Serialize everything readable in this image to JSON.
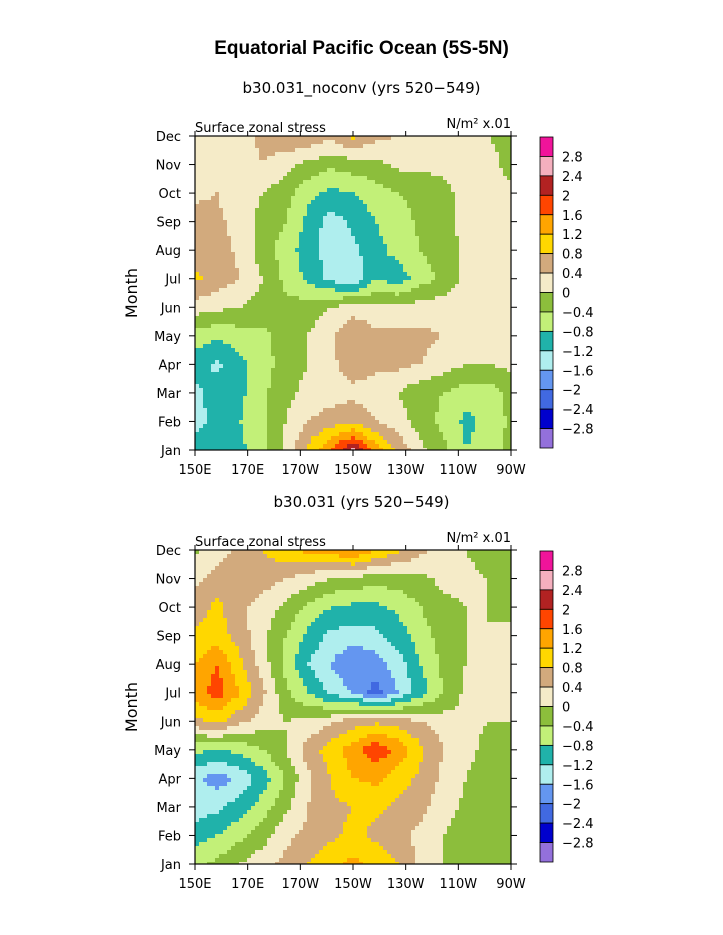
{
  "title": "Equatorial Pacific Ocean (5S-5N)",
  "colorbar": {
    "labels": [
      "2.8",
      "2.4",
      "2",
      "1.6",
      "1.2",
      "0.8",
      "0.4",
      "0",
      "−0.4",
      "−0.8",
      "−1.2",
      "−1.6",
      "−2",
      "−2.4",
      "−2.8"
    ],
    "colors": [
      "#f0149a",
      "#f5afbe",
      "#b22222",
      "#ff4500",
      "#ffa500",
      "#ffd700",
      "#d2aa7d",
      "#f5ebc8",
      "#8cbe3c",
      "#c2f078",
      "#20b2aa",
      "#afeeee",
      "#6496f0",
      "#4169e1",
      "#0000cd",
      "#9370db"
    ]
  },
  "chart_data": [
    {
      "type": "heatmap",
      "title": "b30.031_noconv (yrs 520−549)",
      "subtitle_left": "Surface zonal stress",
      "subtitle_right": "N/m² x.01",
      "ylabel": "Month",
      "xlabel": "",
      "x_ticks": [
        "150E",
        "170E",
        "170W",
        "150W",
        "130W",
        "110W",
        "90W"
      ],
      "y_ticks": [
        "Jan",
        "Feb",
        "Mar",
        "Apr",
        "May",
        "Jun",
        "Jul",
        "Aug",
        "Sep",
        "Oct",
        "Nov",
        "Dec"
      ],
      "xlim": [
        "150E",
        "90W"
      ],
      "levels": [
        -2.8,
        -2.4,
        -2.0,
        -1.6,
        -1.2,
        -0.8,
        -0.4,
        0,
        0.4,
        0.8,
        1.2,
        1.6,
        2.0,
        2.4,
        2.8
      ],
      "values": [
        [
          -0.9,
          -1.1,
          -0.9,
          -0.5,
          0.1,
          0.9,
          1.6,
          2.4,
          1.4,
          0.7,
          0.1,
          -0.3,
          -0.8,
          -0.6,
          -0.3
        ],
        [
          -1.4,
          -1.0,
          -0.8,
          -0.5,
          0.0,
          0.4,
          0.6,
          0.7,
          0.4,
          0.2,
          -0.2,
          -0.5,
          -0.9,
          -0.7,
          -0.3
        ],
        [
          -1.3,
          -1.0,
          -0.9,
          -0.5,
          -0.1,
          0.1,
          0.2,
          0.3,
          0.2,
          0.0,
          -0.3,
          -0.4,
          -0.6,
          -0.6,
          -0.3
        ],
        [
          -1.0,
          -1.3,
          -0.9,
          -0.6,
          -0.2,
          0.0,
          0.3,
          0.6,
          0.5,
          0.5,
          0.4,
          0.2,
          0.0,
          0.0,
          0.1
        ],
        [
          -0.6,
          -0.7,
          -0.6,
          -0.5,
          -0.2,
          0.0,
          0.3,
          0.8,
          0.5,
          0.5,
          0.5,
          0.4,
          0.2,
          0.1,
          0.1
        ],
        [
          0.2,
          0.1,
          0.0,
          -0.2,
          -0.3,
          -0.2,
          0.0,
          0.2,
          0.1,
          0.1,
          0.2,
          0.2,
          0.2,
          0.1,
          0.1
        ],
        [
          0.9,
          0.6,
          0.4,
          0.0,
          -0.5,
          -0.9,
          -1.3,
          -1.6,
          -0.8,
          -1.0,
          -0.6,
          -0.3,
          0.1,
          0.1,
          0.1
        ],
        [
          0.6,
          0.6,
          0.3,
          -0.2,
          -0.6,
          -1.0,
          -1.4,
          -1.3,
          -0.9,
          -0.7,
          -0.4,
          -0.2,
          0.1,
          0.1,
          0.1
        ],
        [
          0.6,
          0.5,
          0.2,
          -0.1,
          -0.4,
          -0.9,
          -1.4,
          -1.1,
          -0.8,
          -0.6,
          -0.3,
          -0.1,
          0.1,
          0.1,
          0.2
        ],
        [
          0.3,
          0.4,
          0.1,
          0.0,
          -0.2,
          -0.7,
          -0.9,
          -0.8,
          -0.6,
          -0.4,
          -0.3,
          -0.1,
          0.1,
          0.0,
          0.1
        ],
        [
          0.3,
          0.1,
          0.3,
          0.4,
          0.1,
          -0.1,
          -0.3,
          -0.2,
          -0.1,
          0.1,
          0.1,
          0.1,
          0.2,
          0.1,
          -0.1
        ],
        [
          0.2,
          0.1,
          0.2,
          0.5,
          0.8,
          0.7,
          0.5,
          0.9,
          0.5,
          0.4,
          0.3,
          0.2,
          0.1,
          0.0,
          -0.1
        ]
      ]
    },
    {
      "type": "heatmap",
      "title": "b30.031 (yrs 520−549)",
      "subtitle_left": "Surface zonal stress",
      "subtitle_right": "N/m² x.01",
      "ylabel": "Month",
      "xlabel": "",
      "x_ticks": [
        "150E",
        "170E",
        "170W",
        "150W",
        "130W",
        "110W",
        "90W"
      ],
      "y_ticks": [
        "Jan",
        "Feb",
        "Mar",
        "Apr",
        "May",
        "Jun",
        "Jul",
        "Aug",
        "Sep",
        "Oct",
        "Nov",
        "Dec"
      ],
      "xlim": [
        "150E",
        "90W"
      ],
      "levels": [
        -2.8,
        -2.4,
        -2.0,
        -1.6,
        -1.2,
        -0.8,
        -0.4,
        0,
        0.4,
        0.8,
        1.2,
        1.6,
        2.0,
        2.4,
        2.8
      ],
      "values": [
        [
          -0.5,
          -0.3,
          0.0,
          0.3,
          0.5,
          0.8,
          1.1,
          1.3,
          1.1,
          0.8,
          0.3,
          0.0,
          -0.3,
          -0.4,
          -0.3
        ],
        [
          -1.0,
          -0.8,
          -0.5,
          -0.2,
          0.3,
          0.5,
          0.7,
          0.9,
          0.7,
          0.5,
          0.3,
          0.0,
          -0.3,
          -0.4,
          -0.3
        ],
        [
          -1.4,
          -1.3,
          -1.0,
          -0.6,
          -0.1,
          0.4,
          0.7,
          0.8,
          0.9,
          0.7,
          0.5,
          0.2,
          -0.1,
          -0.3,
          -0.3
        ],
        [
          -1.5,
          -1.8,
          -1.5,
          -1.0,
          -0.4,
          0.3,
          0.8,
          1.2,
          1.3,
          1.0,
          0.7,
          0.3,
          0.0,
          -0.2,
          -0.2
        ],
        [
          -0.7,
          -0.8,
          -0.7,
          -0.4,
          0.0,
          0.6,
          1.0,
          1.4,
          1.9,
          1.5,
          0.9,
          0.4,
          0.1,
          -0.1,
          -0.1
        ],
        [
          0.7,
          0.9,
          0.5,
          0.2,
          0.0,
          0.1,
          0.3,
          0.6,
          0.7,
          0.6,
          0.4,
          0.2,
          0.1,
          0.0,
          0.0
        ],
        [
          1.4,
          1.8,
          1.2,
          0.5,
          -0.3,
          -0.8,
          -1.3,
          -1.6,
          -2.2,
          -1.6,
          -1.0,
          -0.4,
          0.1,
          0.2,
          0.2
        ],
        [
          1.2,
          1.6,
          0.9,
          0.2,
          -0.5,
          -1.2,
          -1.6,
          -2.0,
          -1.8,
          -1.4,
          -0.8,
          -0.3,
          0.0,
          0.2,
          0.2
        ],
        [
          0.9,
          1.0,
          0.6,
          0.1,
          -0.4,
          -0.9,
          -1.3,
          -1.4,
          -1.3,
          -1.0,
          -0.6,
          -0.2,
          0.0,
          0.0,
          0.1
        ],
        [
          0.6,
          0.9,
          0.5,
          0.2,
          -0.1,
          -0.5,
          -0.8,
          -0.9,
          -0.9,
          -0.7,
          -0.4,
          -0.1,
          0.0,
          0.0,
          -0.1
        ],
        [
          0.3,
          0.6,
          0.7,
          0.6,
          0.4,
          0.2,
          0.0,
          -0.1,
          -0.2,
          -0.2,
          -0.1,
          0.1,
          0.1,
          0.0,
          -0.1
        ],
        [
          -0.1,
          0.2,
          0.5,
          0.8,
          1.1,
          1.3,
          1.4,
          1.7,
          1.2,
          0.9,
          0.5,
          0.2,
          0.0,
          -0.2,
          -0.3
        ]
      ]
    }
  ]
}
